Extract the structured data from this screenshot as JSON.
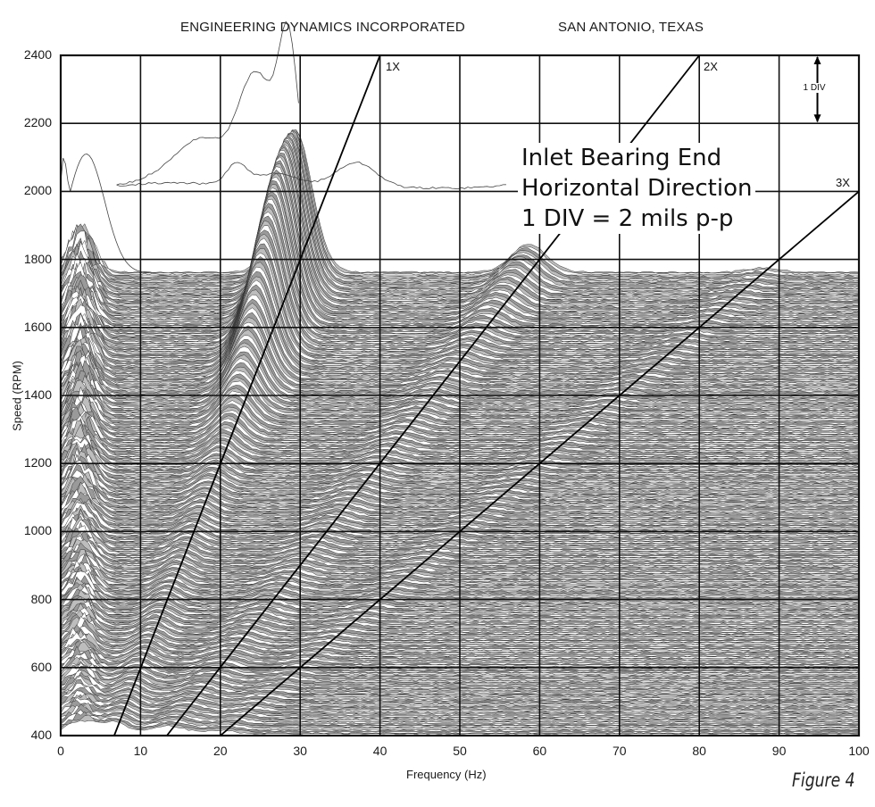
{
  "header": {
    "company": "ENGINEERING DYNAMICS INCORPORATED",
    "location": "SAN ANTONIO, TEXAS"
  },
  "annotation": {
    "line1": "Inlet Bearing End",
    "line2": "Horizontal Direction",
    "line3": "1 DIV = 2 mils p-p"
  },
  "scale_marker": {
    "label": "1 DIV"
  },
  "figure_caption": "Figure 4",
  "order_lines": [
    {
      "label": "1X",
      "order": 1
    },
    {
      "label": "2X",
      "order": 2
    },
    {
      "label": "3X",
      "order": 3
    }
  ],
  "colors": {
    "grid": "#111111",
    "trace": "#333333",
    "fill": "#a9a9a9",
    "background": "#ffffff"
  },
  "chart_data": {
    "type": "waterfall",
    "title": "ENGINEERING DYNAMICS INCORPORATED    SAN ANTONIO, TEXAS",
    "xlabel": "Frequency (Hz)",
    "ylabel": "Speed (RPM)",
    "xlim": [
      0,
      100
    ],
    "ylim": [
      400,
      2400
    ],
    "x_ticks": [
      "0",
      "10",
      "20",
      "30",
      "40",
      "50",
      "60",
      "70",
      "80",
      "90",
      "100"
    ],
    "y_ticks": [
      "400",
      "600",
      "800",
      "1000",
      "1200",
      "1400",
      "1600",
      "1800",
      "2000",
      "2200",
      "2400"
    ],
    "grid": true,
    "amplitude_scale": "1 DIV = 2 mils p-p",
    "measurement": "Inlet Bearing End, Horizontal Direction",
    "order_lines": [
      {
        "label": "1X",
        "from": [
          6.7,
          400
        ],
        "to": [
          40,
          2400
        ]
      },
      {
        "label": "2X",
        "from": [
          13.3,
          400
        ],
        "to": [
          80,
          2400
        ]
      },
      {
        "label": "3X",
        "from": [
          20,
          400
        ],
        "to": [
          100,
          2000
        ]
      }
    ],
    "spectrum_rows": {
      "rpm_start": 400,
      "rpm_end": 1760,
      "approx_count": 230
    },
    "features": [
      {
        "name": "low-frequency peak",
        "freq_hz": 3,
        "peak_rpm_level": 2110,
        "at_speed_rpm": 1760
      },
      {
        "name": "1X resonance peak",
        "freq_hz": 29,
        "peak_rpm_level": 2180,
        "at_speed_rpm": 1740
      },
      {
        "name": "top trace peak",
        "freq_hz": 27,
        "peak_rpm_level": 2440
      },
      {
        "name": "2X response hump",
        "freq_hz": 59,
        "peak_rpm_level": 1780
      },
      {
        "name": "secondary hump",
        "freq_hz": 37,
        "peak_rpm_level": 2080
      }
    ]
  }
}
